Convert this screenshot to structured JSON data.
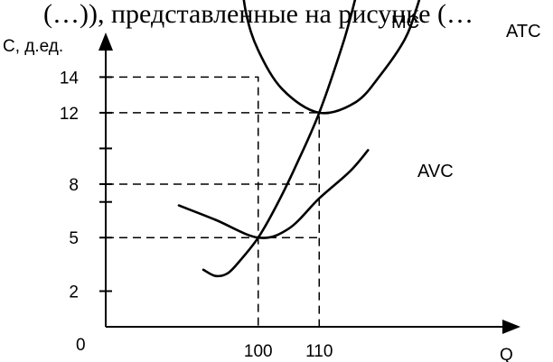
{
  "top_text": "(…)), представленные на рисунке (…",
  "chart_data": {
    "type": "line",
    "title": "",
    "xlabel": "Q",
    "ylabel": "С, д.ед.",
    "origin_label": "0",
    "x_ticks": [
      100,
      110
    ],
    "y_ticks": [
      2,
      5,
      8,
      12,
      14
    ],
    "y_unlabeled_ticks": [
      10,
      7
    ],
    "xlim": [
      75,
      143
    ],
    "ylim": [
      0,
      16.5
    ],
    "series": [
      {
        "name": "MC",
        "points": [
          [
            91,
            3.2
          ],
          [
            93,
            2.85
          ],
          [
            95,
            3.0
          ],
          [
            97,
            3.7
          ],
          [
            100,
            5
          ],
          [
            103,
            6.8
          ],
          [
            106,
            8.9
          ],
          [
            110,
            12
          ],
          [
            114,
            16
          ],
          [
            116,
            18.5
          ]
        ]
      },
      {
        "name": "ATC",
        "points": [
          [
            97,
            20.2
          ],
          [
            98,
            17.6
          ],
          [
            100,
            15.5
          ],
          [
            104,
            13.3
          ],
          [
            110,
            12
          ],
          [
            116,
            12.6
          ],
          [
            120,
            14.1
          ],
          [
            124,
            16.1
          ],
          [
            126,
            17.9
          ],
          [
            128,
            20.2
          ]
        ]
      },
      {
        "name": "AVC",
        "points": [
          [
            87,
            6.8
          ],
          [
            93,
            6
          ],
          [
            100,
            5
          ],
          [
            105,
            5.5
          ],
          [
            110,
            7.2
          ],
          [
            115,
            8.7
          ],
          [
            118,
            9.9
          ]
        ]
      }
    ],
    "guides": [
      {
        "from": [
          0,
          14
        ],
        "to": [
          100,
          14
        ],
        "down_to_axis": true
      },
      {
        "from": [
          0,
          12
        ],
        "to": [
          110,
          12
        ],
        "down_to_axis": true
      },
      {
        "from": [
          0,
          8
        ],
        "to": [
          110,
          8
        ],
        "down_to_axis": false
      },
      {
        "from": [
          0,
          5
        ],
        "to": [
          110,
          5
        ],
        "down_to_axis": false
      }
    ]
  }
}
